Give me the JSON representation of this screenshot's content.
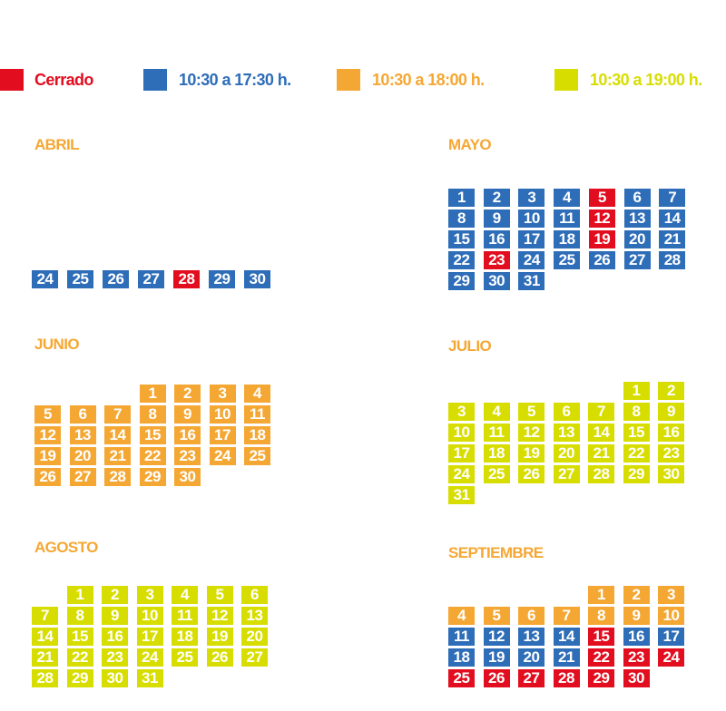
{
  "colors": {
    "closed": "#e20d1f",
    "blue": "#2e6db8",
    "orange": "#f5a733",
    "yellow": "#d8dd00"
  },
  "legend": [
    {
      "key": "closed",
      "label": "Cerrado",
      "text_color": "#e20d1f"
    },
    {
      "key": "blue",
      "label": "10:30 a 17:30 h.",
      "text_color": "#2e6db8"
    },
    {
      "key": "orange",
      "label": "10:30 a 18:00 h.",
      "text_color": "#f5a733"
    },
    {
      "key": "yellow",
      "label": "10:30 a 19:00 h.",
      "text_color": "#d8dd00"
    }
  ],
  "months": [
    {
      "id": "abril",
      "name": "ABRIL",
      "days": [
        {
          "day": 24,
          "type": "blue",
          "weekday": 0
        },
        {
          "day": 25,
          "type": "blue",
          "weekday": 1
        },
        {
          "day": 26,
          "type": "blue",
          "weekday": 2
        },
        {
          "day": 27,
          "type": "blue",
          "weekday": 3
        },
        {
          "day": 28,
          "type": "closed",
          "weekday": 4
        },
        {
          "day": 29,
          "type": "blue",
          "weekday": 5
        },
        {
          "day": 30,
          "type": "blue",
          "weekday": 6
        }
      ]
    },
    {
      "id": "mayo",
      "name": "MAYO",
      "days": [
        {
          "day": 1,
          "type": "blue"
        },
        {
          "day": 2,
          "type": "blue"
        },
        {
          "day": 3,
          "type": "blue"
        },
        {
          "day": 4,
          "type": "blue"
        },
        {
          "day": 5,
          "type": "closed"
        },
        {
          "day": 6,
          "type": "blue"
        },
        {
          "day": 7,
          "type": "blue"
        },
        {
          "day": 8,
          "type": "blue"
        },
        {
          "day": 9,
          "type": "blue"
        },
        {
          "day": 10,
          "type": "blue"
        },
        {
          "day": 11,
          "type": "blue"
        },
        {
          "day": 12,
          "type": "closed"
        },
        {
          "day": 13,
          "type": "blue"
        },
        {
          "day": 14,
          "type": "blue"
        },
        {
          "day": 15,
          "type": "blue"
        },
        {
          "day": 16,
          "type": "blue"
        },
        {
          "day": 17,
          "type": "blue"
        },
        {
          "day": 18,
          "type": "blue"
        },
        {
          "day": 19,
          "type": "closed"
        },
        {
          "day": 20,
          "type": "blue"
        },
        {
          "day": 21,
          "type": "blue"
        },
        {
          "day": 22,
          "type": "blue"
        },
        {
          "day": 23,
          "type": "closed"
        },
        {
          "day": 24,
          "type": "blue"
        },
        {
          "day": 25,
          "type": "blue"
        },
        {
          "day": 26,
          "type": "blue"
        },
        {
          "day": 27,
          "type": "blue"
        },
        {
          "day": 28,
          "type": "blue"
        },
        {
          "day": 29,
          "type": "blue"
        },
        {
          "day": 30,
          "type": "blue"
        },
        {
          "day": 31,
          "type": "blue"
        }
      ]
    },
    {
      "id": "junio",
      "name": "JUNIO",
      "days": [
        {
          "day": 1,
          "type": "orange"
        },
        {
          "day": 2,
          "type": "orange"
        },
        {
          "day": 3,
          "type": "orange"
        },
        {
          "day": 4,
          "type": "orange"
        },
        {
          "day": 5,
          "type": "orange"
        },
        {
          "day": 6,
          "type": "orange"
        },
        {
          "day": 7,
          "type": "orange"
        },
        {
          "day": 8,
          "type": "orange"
        },
        {
          "day": 9,
          "type": "orange"
        },
        {
          "day": 10,
          "type": "orange"
        },
        {
          "day": 11,
          "type": "orange"
        },
        {
          "day": 12,
          "type": "orange"
        },
        {
          "day": 13,
          "type": "orange"
        },
        {
          "day": 14,
          "type": "orange"
        },
        {
          "day": 15,
          "type": "orange"
        },
        {
          "day": 16,
          "type": "orange"
        },
        {
          "day": 17,
          "type": "orange"
        },
        {
          "day": 18,
          "type": "orange"
        },
        {
          "day": 19,
          "type": "orange"
        },
        {
          "day": 20,
          "type": "orange"
        },
        {
          "day": 21,
          "type": "orange"
        },
        {
          "day": 22,
          "type": "orange"
        },
        {
          "day": 23,
          "type": "orange"
        },
        {
          "day": 24,
          "type": "orange"
        },
        {
          "day": 25,
          "type": "orange"
        },
        {
          "day": 26,
          "type": "orange"
        },
        {
          "day": 27,
          "type": "orange"
        },
        {
          "day": 28,
          "type": "orange"
        },
        {
          "day": 29,
          "type": "orange"
        },
        {
          "day": 30,
          "type": "orange"
        }
      ]
    },
    {
      "id": "julio",
      "name": "JULIO",
      "days": [
        {
          "day": 1,
          "type": "yellow"
        },
        {
          "day": 2,
          "type": "yellow"
        },
        {
          "day": 3,
          "type": "yellow"
        },
        {
          "day": 4,
          "type": "yellow"
        },
        {
          "day": 5,
          "type": "yellow"
        },
        {
          "day": 6,
          "type": "yellow"
        },
        {
          "day": 7,
          "type": "yellow"
        },
        {
          "day": 8,
          "type": "yellow"
        },
        {
          "day": 9,
          "type": "yellow"
        },
        {
          "day": 10,
          "type": "yellow"
        },
        {
          "day": 11,
          "type": "yellow"
        },
        {
          "day": 12,
          "type": "yellow"
        },
        {
          "day": 13,
          "type": "yellow"
        },
        {
          "day": 14,
          "type": "yellow"
        },
        {
          "day": 15,
          "type": "yellow"
        },
        {
          "day": 16,
          "type": "yellow"
        },
        {
          "day": 17,
          "type": "yellow"
        },
        {
          "day": 18,
          "type": "yellow"
        },
        {
          "day": 19,
          "type": "yellow"
        },
        {
          "day": 20,
          "type": "yellow"
        },
        {
          "day": 21,
          "type": "yellow"
        },
        {
          "day": 22,
          "type": "yellow"
        },
        {
          "day": 23,
          "type": "yellow"
        },
        {
          "day": 24,
          "type": "yellow"
        },
        {
          "day": 25,
          "type": "yellow"
        },
        {
          "day": 26,
          "type": "yellow"
        },
        {
          "day": 27,
          "type": "yellow"
        },
        {
          "day": 28,
          "type": "yellow"
        },
        {
          "day": 29,
          "type": "yellow"
        },
        {
          "day": 30,
          "type": "yellow"
        },
        {
          "day": 31,
          "type": "yellow"
        }
      ]
    },
    {
      "id": "agosto",
      "name": "AGOSTO",
      "days": [
        {
          "day": 1,
          "type": "yellow"
        },
        {
          "day": 2,
          "type": "yellow"
        },
        {
          "day": 3,
          "type": "yellow"
        },
        {
          "day": 4,
          "type": "yellow"
        },
        {
          "day": 5,
          "type": "yellow"
        },
        {
          "day": 6,
          "type": "yellow"
        },
        {
          "day": 7,
          "type": "yellow"
        },
        {
          "day": 8,
          "type": "yellow"
        },
        {
          "day": 9,
          "type": "yellow"
        },
        {
          "day": 10,
          "type": "yellow"
        },
        {
          "day": 11,
          "type": "yellow"
        },
        {
          "day": 12,
          "type": "yellow"
        },
        {
          "day": 13,
          "type": "yellow"
        },
        {
          "day": 14,
          "type": "yellow"
        },
        {
          "day": 15,
          "type": "yellow"
        },
        {
          "day": 16,
          "type": "yellow"
        },
        {
          "day": 17,
          "type": "yellow"
        },
        {
          "day": 18,
          "type": "yellow"
        },
        {
          "day": 19,
          "type": "yellow"
        },
        {
          "day": 20,
          "type": "yellow"
        },
        {
          "day": 21,
          "type": "yellow"
        },
        {
          "day": 22,
          "type": "yellow"
        },
        {
          "day": 23,
          "type": "yellow"
        },
        {
          "day": 24,
          "type": "yellow"
        },
        {
          "day": 25,
          "type": "yellow"
        },
        {
          "day": 26,
          "type": "yellow"
        },
        {
          "day": 27,
          "type": "yellow"
        },
        {
          "day": 28,
          "type": "yellow"
        },
        {
          "day": 29,
          "type": "yellow"
        },
        {
          "day": 30,
          "type": "yellow"
        },
        {
          "day": 31,
          "type": "yellow"
        }
      ]
    },
    {
      "id": "septiembre",
      "name": "SEPTIEMBRE",
      "days": [
        {
          "day": 1,
          "type": "orange"
        },
        {
          "day": 2,
          "type": "orange"
        },
        {
          "day": 3,
          "type": "orange"
        },
        {
          "day": 4,
          "type": "orange"
        },
        {
          "day": 5,
          "type": "orange"
        },
        {
          "day": 6,
          "type": "orange"
        },
        {
          "day": 7,
          "type": "orange"
        },
        {
          "day": 8,
          "type": "orange"
        },
        {
          "day": 9,
          "type": "orange"
        },
        {
          "day": 10,
          "type": "orange"
        },
        {
          "day": 11,
          "type": "blue"
        },
        {
          "day": 12,
          "type": "blue"
        },
        {
          "day": 13,
          "type": "blue"
        },
        {
          "day": 14,
          "type": "blue"
        },
        {
          "day": 15,
          "type": "closed"
        },
        {
          "day": 16,
          "type": "blue"
        },
        {
          "day": 17,
          "type": "blue"
        },
        {
          "day": 18,
          "type": "blue"
        },
        {
          "day": 19,
          "type": "blue"
        },
        {
          "day": 20,
          "type": "blue"
        },
        {
          "day": 21,
          "type": "blue"
        },
        {
          "day": 22,
          "type": "closed"
        },
        {
          "day": 23,
          "type": "closed"
        },
        {
          "day": 24,
          "type": "closed"
        },
        {
          "day": 25,
          "type": "closed"
        },
        {
          "day": 26,
          "type": "closed"
        },
        {
          "day": 27,
          "type": "closed"
        },
        {
          "day": 28,
          "type": "closed"
        },
        {
          "day": 29,
          "type": "closed"
        },
        {
          "day": 30,
          "type": "closed"
        }
      ]
    }
  ]
}
